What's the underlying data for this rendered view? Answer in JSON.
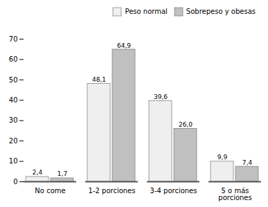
{
  "chart_data": {
    "type": "bar",
    "categories": [
      "No come",
      "1-2 porciones",
      "3-4 porciones",
      "5 o más\nporciones"
    ],
    "series": [
      {
        "name": "Peso normal",
        "color": "#efefef",
        "values": [
          2.4,
          48.1,
          39.6,
          9.9
        ],
        "value_labels": [
          "2,4",
          "48,1",
          "39,6",
          "9,9"
        ]
      },
      {
        "name": "Sobrepeso y obesas",
        "color": "#c0c0c0",
        "values": [
          1.7,
          64.9,
          26.0,
          7.4
        ],
        "value_labels": [
          "1,7",
          "64,9",
          "26,0",
          "7,4"
        ]
      }
    ],
    "ylim": [
      0,
      70
    ],
    "yticks": [
      0,
      10,
      20,
      30,
      40,
      50,
      60,
      70
    ],
    "grid": false,
    "legend": "upper right",
    "data_labels": true
  }
}
